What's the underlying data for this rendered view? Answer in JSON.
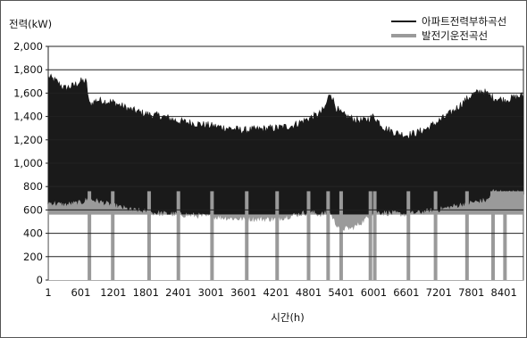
{
  "chart_data": {
    "type": "area",
    "title": "",
    "ylabel": "전력(kW)",
    "xlabel": "시간(h)",
    "ylim": [
      0,
      2000
    ],
    "xlim": [
      1,
      8760
    ],
    "yticks": [
      0,
      200,
      400,
      600,
      800,
      1000,
      1200,
      1400,
      1600,
      1800,
      2000
    ],
    "ytick_labels": [
      "0",
      "200",
      "400",
      "600",
      "800",
      "1,000",
      "1,200",
      "1,400",
      "1,600",
      "1,800",
      "2,000"
    ],
    "xticks": [
      1,
      601,
      1201,
      1801,
      2401,
      3001,
      3601,
      4201,
      4801,
      5401,
      6001,
      6601,
      7201,
      7801,
      8401
    ],
    "xtick_labels": [
      "1",
      "601",
      "1201",
      "1801",
      "2401",
      "3001",
      "3601",
      "4201",
      "4801",
      "5401",
      "6001",
      "6601",
      "7201",
      "7801",
      "8401"
    ],
    "grid": "horizontal",
    "legend_position": "top-right",
    "series": [
      {
        "name": "아파트전력부하곡선",
        "color": "#1a1a1a",
        "x": [
          1,
          150,
          300,
          450,
          600,
          700,
          760,
          900,
          1200,
          1500,
          1800,
          2100,
          2400,
          2700,
          3000,
          3300,
          3600,
          3900,
          4200,
          4500,
          4800,
          5000,
          5100,
          5200,
          5300,
          5400,
          5600,
          5800,
          6000,
          6200,
          6400,
          6600,
          6800,
          7000,
          7200,
          7400,
          7600,
          7800,
          8000,
          8200,
          8400,
          8600,
          8760
        ],
        "values": [
          1740,
          1700,
          1640,
          1660,
          1700,
          1700,
          1500,
          1540,
          1520,
          1460,
          1420,
          1400,
          1360,
          1340,
          1320,
          1300,
          1280,
          1290,
          1300,
          1320,
          1380,
          1420,
          1470,
          1610,
          1480,
          1420,
          1380,
          1360,
          1400,
          1300,
          1260,
          1240,
          1260,
          1300,
          1360,
          1420,
          1500,
          1580,
          1620,
          1560,
          1540,
          1560,
          1580
        ]
      },
      {
        "name": "발전기운전곡선",
        "color": "#9a9a9a",
        "x": [
          1,
          300,
          600,
          760,
          1000,
          1500,
          2000,
          2400,
          3000,
          3600,
          4200,
          4800,
          5000,
          5200,
          5300,
          5400,
          5600,
          5800,
          6000,
          6600,
          7200,
          7800,
          8100,
          8200,
          8400,
          8760
        ],
        "values": [
          660,
          640,
          660,
          690,
          660,
          600,
          570,
          560,
          540,
          520,
          520,
          580,
          560,
          570,
          480,
          440,
          440,
          500,
          580,
          560,
          600,
          660,
          680,
          760,
          740,
          750
        ]
      }
    ]
  }
}
